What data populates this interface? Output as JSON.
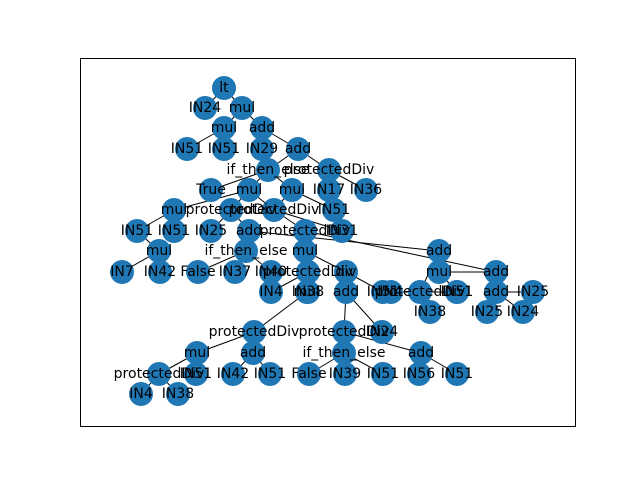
{
  "colors": {
    "node_fill": "#1f77b4",
    "edge": "#000000",
    "label": "#000000",
    "frame": "#000000",
    "background": "#ffffff"
  },
  "tree": {
    "nodes": [
      {
        "id": "n0",
        "label": "lt"
      },
      {
        "id": "n1",
        "label": "IN24"
      },
      {
        "id": "n2",
        "label": "mul"
      },
      {
        "id": "n3",
        "label": "mul"
      },
      {
        "id": "n4",
        "label": "add"
      },
      {
        "id": "n5",
        "label": "IN51"
      },
      {
        "id": "n6",
        "label": "IN51"
      },
      {
        "id": "n7",
        "label": "IN29"
      },
      {
        "id": "n8",
        "label": "add"
      },
      {
        "id": "n9",
        "label": "if_then_else"
      },
      {
        "id": "n10",
        "label": "protectedDiv"
      },
      {
        "id": "n11",
        "label": "True"
      },
      {
        "id": "n12",
        "label": "mul"
      },
      {
        "id": "n13",
        "label": "mul"
      },
      {
        "id": "n14",
        "label": "IN17"
      },
      {
        "id": "n15",
        "label": "IN36"
      },
      {
        "id": "n16",
        "label": "mul"
      },
      {
        "id": "n17",
        "label": "protectedDiv"
      },
      {
        "id": "n18",
        "label": "protectedDiv"
      },
      {
        "id": "n19",
        "label": "IN51"
      },
      {
        "id": "n20",
        "label": "IN51"
      },
      {
        "id": "n21",
        "label": "IN51"
      },
      {
        "id": "n22",
        "label": "IN25"
      },
      {
        "id": "n23",
        "label": "add"
      },
      {
        "id": "n24",
        "label": "protectedDiv"
      },
      {
        "id": "n25",
        "label": "IN31"
      },
      {
        "id": "n26",
        "label": "mul"
      },
      {
        "id": "n27",
        "label": "if_then_else"
      },
      {
        "id": "n28",
        "label": "mul"
      },
      {
        "id": "n29",
        "label": "add"
      },
      {
        "id": "n30",
        "label": "IN7"
      },
      {
        "id": "n31",
        "label": "IN42"
      },
      {
        "id": "n32",
        "label": "False"
      },
      {
        "id": "n33",
        "label": "IN37"
      },
      {
        "id": "n34",
        "label": "IN40"
      },
      {
        "id": "n35",
        "label": "protectedDiv"
      },
      {
        "id": "n36",
        "label": "div"
      },
      {
        "id": "n37",
        "label": "mul"
      },
      {
        "id": "n38",
        "label": "add"
      },
      {
        "id": "n39",
        "label": "IN4"
      },
      {
        "id": "n40",
        "label": "IN38"
      },
      {
        "id": "n41",
        "label": "IN51"
      },
      {
        "id": "n42",
        "label": "protectedDiv"
      },
      {
        "id": "n43",
        "label": "IN51"
      },
      {
        "id": "n44",
        "label": "add"
      },
      {
        "id": "n45",
        "label": "IN25"
      },
      {
        "id": "n46",
        "label": "mul"
      },
      {
        "id": "n47",
        "label": "add"
      },
      {
        "id": "n48",
        "label": "IN4"
      },
      {
        "id": "n49",
        "label": "IN38"
      },
      {
        "id": "n50",
        "label": "IN25"
      },
      {
        "id": "n51",
        "label": "IN24"
      },
      {
        "id": "n52",
        "label": "protectedDiv"
      },
      {
        "id": "n53",
        "label": "IN51"
      },
      {
        "id": "n54",
        "label": "protectedDiv"
      },
      {
        "id": "n55",
        "label": "IN24"
      },
      {
        "id": "n56",
        "label": "mul"
      },
      {
        "id": "n57",
        "label": "add"
      },
      {
        "id": "n58",
        "label": "if_then_else"
      },
      {
        "id": "n59",
        "label": "add"
      },
      {
        "id": "n60",
        "label": "protectedDiv"
      },
      {
        "id": "n61",
        "label": "IN51"
      },
      {
        "id": "n62",
        "label": "IN42"
      },
      {
        "id": "n63",
        "label": "IN51"
      },
      {
        "id": "n64",
        "label": "False"
      },
      {
        "id": "n65",
        "label": "IN39"
      },
      {
        "id": "n66",
        "label": "IN51"
      },
      {
        "id": "n67",
        "label": "IN56"
      },
      {
        "id": "n68",
        "label": "IN51"
      },
      {
        "id": "n69",
        "label": "IN4"
      },
      {
        "id": "n70",
        "label": "IN38"
      }
    ],
    "edges": [
      [
        "n0",
        "n1"
      ],
      [
        "n0",
        "n2"
      ],
      [
        "n2",
        "n3"
      ],
      [
        "n2",
        "n4"
      ],
      [
        "n3",
        "n5"
      ],
      [
        "n3",
        "n6"
      ],
      [
        "n4",
        "n7"
      ],
      [
        "n4",
        "n8"
      ],
      [
        "n8",
        "n9"
      ],
      [
        "n8",
        "n10"
      ],
      [
        "n9",
        "n11"
      ],
      [
        "n9",
        "n12"
      ],
      [
        "n9",
        "n13"
      ],
      [
        "n10",
        "n14"
      ],
      [
        "n10",
        "n15"
      ],
      [
        "n12",
        "n16"
      ],
      [
        "n12",
        "n17"
      ],
      [
        "n12",
        "n18"
      ],
      [
        "n13",
        "n18"
      ],
      [
        "n13",
        "n19"
      ],
      [
        "n16",
        "n20"
      ],
      [
        "n16",
        "n21"
      ],
      [
        "n17",
        "n22"
      ],
      [
        "n17",
        "n23"
      ],
      [
        "n18",
        "n24"
      ],
      [
        "n18",
        "n25"
      ],
      [
        "n20",
        "n28"
      ],
      [
        "n23",
        "n27"
      ],
      [
        "n23",
        "n29"
      ],
      [
        "n24",
        "n26"
      ],
      [
        "n24",
        "n44"
      ],
      [
        "n28",
        "n30"
      ],
      [
        "n28",
        "n31"
      ],
      [
        "n27",
        "n32"
      ],
      [
        "n27",
        "n33"
      ],
      [
        "n27",
        "n34"
      ],
      [
        "n26",
        "n35"
      ],
      [
        "n26",
        "n36"
      ],
      [
        "n26",
        "n37"
      ],
      [
        "n35",
        "n39"
      ],
      [
        "n35",
        "n40"
      ],
      [
        "n36",
        "n38"
      ],
      [
        "n36",
        "n41"
      ],
      [
        "n29",
        "n42"
      ],
      [
        "n42",
        "n43"
      ],
      [
        "n42",
        "n48"
      ],
      [
        "n42",
        "n49"
      ],
      [
        "n44",
        "n46"
      ],
      [
        "n44",
        "n47"
      ],
      [
        "n46",
        "n53"
      ],
      [
        "n47",
        "n45"
      ],
      [
        "n47",
        "n50"
      ],
      [
        "n47",
        "n51"
      ],
      [
        "n37",
        "n52"
      ],
      [
        "n38",
        "n54"
      ],
      [
        "n38",
        "n55"
      ],
      [
        "n52",
        "n56"
      ],
      [
        "n52",
        "n57"
      ],
      [
        "n56",
        "n60"
      ],
      [
        "n56",
        "n61"
      ],
      [
        "n57",
        "n62"
      ],
      [
        "n57",
        "n63"
      ],
      [
        "n54",
        "n58"
      ],
      [
        "n54",
        "n59"
      ],
      [
        "n58",
        "n64"
      ],
      [
        "n58",
        "n65"
      ],
      [
        "n58",
        "n66"
      ],
      [
        "n59",
        "n67"
      ],
      [
        "n59",
        "n68"
      ],
      [
        "n60",
        "n69"
      ],
      [
        "n60",
        "n70"
      ]
    ]
  }
}
